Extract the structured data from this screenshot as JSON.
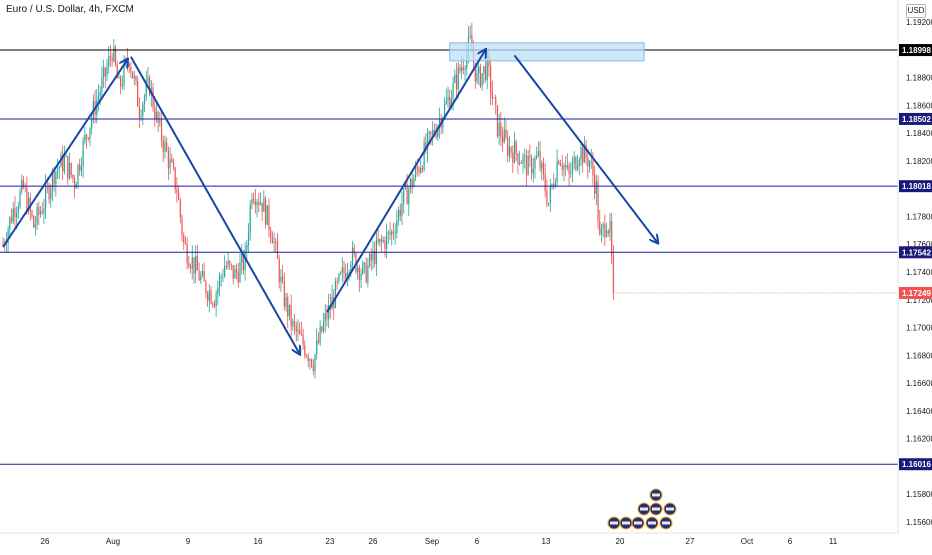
{
  "header": {
    "title": "Euro / U.S. Dollar, 4h, FXCM",
    "currency": "USD"
  },
  "colors": {
    "up": "#26a69a",
    "down": "#ef5350",
    "level_line": "#1a1aa0",
    "level_label_bg": "#1a1a7a",
    "top_level_label_bg": "#000000",
    "last_price_bg": "#ef5350",
    "arrow": "#1546a8",
    "zone_fill": "#bfe0f7",
    "zone_stroke": "#7fbde8",
    "axis_text": "#131722"
  },
  "chart_data": {
    "type": "candlestick",
    "symbol": "EURUSD",
    "interval": "4h",
    "y_ticks": [
      "1.19200",
      "1.18800",
      "1.18600",
      "1.18400",
      "1.18200",
      "1.17800",
      "1.17600",
      "1.17400",
      "1.17200",
      "1.17000",
      "1.16800",
      "1.16600",
      "1.16400",
      "1.16200",
      "1.15800",
      "1.15600"
    ],
    "x_ticks": [
      "26",
      "Aug",
      "9",
      "16",
      "23",
      "26",
      "Sep",
      "6",
      "13",
      "20",
      "27",
      "Oct",
      "6",
      "11"
    ],
    "levels": [
      {
        "value": 1.18998,
        "label": "1.18998",
        "style": "top"
      },
      {
        "value": 1.18502,
        "label": "1.18502",
        "style": "level"
      },
      {
        "value": 1.18018,
        "label": "1.18018",
        "style": "level"
      },
      {
        "value": 1.17542,
        "label": "1.17542",
        "style": "level"
      },
      {
        "value": 1.16016,
        "label": "1.16016",
        "style": "level"
      }
    ],
    "last_price": {
      "value": 1.17249,
      "label": "1.17249"
    },
    "zone": {
      "y_top": 1.1905,
      "y_bottom": 1.1892,
      "x_start_bar": 262,
      "x_end_bar": 376
    },
    "arrows": [
      {
        "from": [
          0,
          1.1758
        ],
        "to": [
          73,
          1.1893
        ]
      },
      {
        "from": [
          75,
          1.1895
        ],
        "to": [
          174,
          1.1681
        ]
      },
      {
        "from": [
          190,
          1.1711
        ],
        "to": [
          283,
          1.19
        ]
      },
      {
        "from": [
          300,
          1.1896
        ],
        "to": [
          384,
          1.1761
        ]
      }
    ],
    "waypoints": [
      [
        0,
        1.176
      ],
      [
        6,
        1.1785
      ],
      [
        12,
        1.18
      ],
      [
        18,
        1.1773
      ],
      [
        24,
        1.179
      ],
      [
        30,
        1.1812
      ],
      [
        36,
        1.182
      ],
      [
        42,
        1.1805
      ],
      [
        48,
        1.1835
      ],
      [
        54,
        1.186
      ],
      [
        60,
        1.1882
      ],
      [
        64,
        1.19
      ],
      [
        68,
        1.1872
      ],
      [
        74,
        1.1895
      ],
      [
        80,
        1.1858
      ],
      [
        86,
        1.1875
      ],
      [
        90,
        1.185
      ],
      [
        96,
        1.1825
      ],
      [
        102,
        1.18
      ],
      [
        106,
        1.176
      ],
      [
        112,
        1.1745
      ],
      [
        118,
        1.173
      ],
      [
        124,
        1.1722
      ],
      [
        130,
        1.1745
      ],
      [
        136,
        1.1738
      ],
      [
        142,
        1.1748
      ],
      [
        146,
        1.18
      ],
      [
        152,
        1.179
      ],
      [
        158,
        1.1768
      ],
      [
        164,
        1.1725
      ],
      [
        170,
        1.17
      ],
      [
        176,
        1.1688
      ],
      [
        182,
        1.1676
      ],
      [
        188,
        1.1702
      ],
      [
        196,
        1.1728
      ],
      [
        204,
        1.1752
      ],
      [
        212,
        1.1738
      ],
      [
        220,
        1.1758
      ],
      [
        228,
        1.1768
      ],
      [
        234,
        1.179
      ],
      [
        240,
        1.1805
      ],
      [
        248,
        1.1828
      ],
      [
        256,
        1.185
      ],
      [
        264,
        1.1872
      ],
      [
        270,
        1.1892
      ],
      [
        274,
        1.1905
      ],
      [
        278,
        1.1878
      ],
      [
        284,
        1.1888
      ],
      [
        290,
        1.1845
      ],
      [
        296,
        1.183
      ],
      [
        302,
        1.1825
      ],
      [
        308,
        1.1815
      ],
      [
        314,
        1.1822
      ],
      [
        320,
        1.179
      ],
      [
        326,
        1.1825
      ],
      [
        332,
        1.1808
      ],
      [
        338,
        1.1828
      ],
      [
        344,
        1.182
      ],
      [
        348,
        1.18
      ],
      [
        350,
        1.1762
      ],
      [
        354,
        1.1778
      ],
      [
        356,
        1.1768
      ],
      [
        358,
        1.1725
      ]
    ]
  }
}
